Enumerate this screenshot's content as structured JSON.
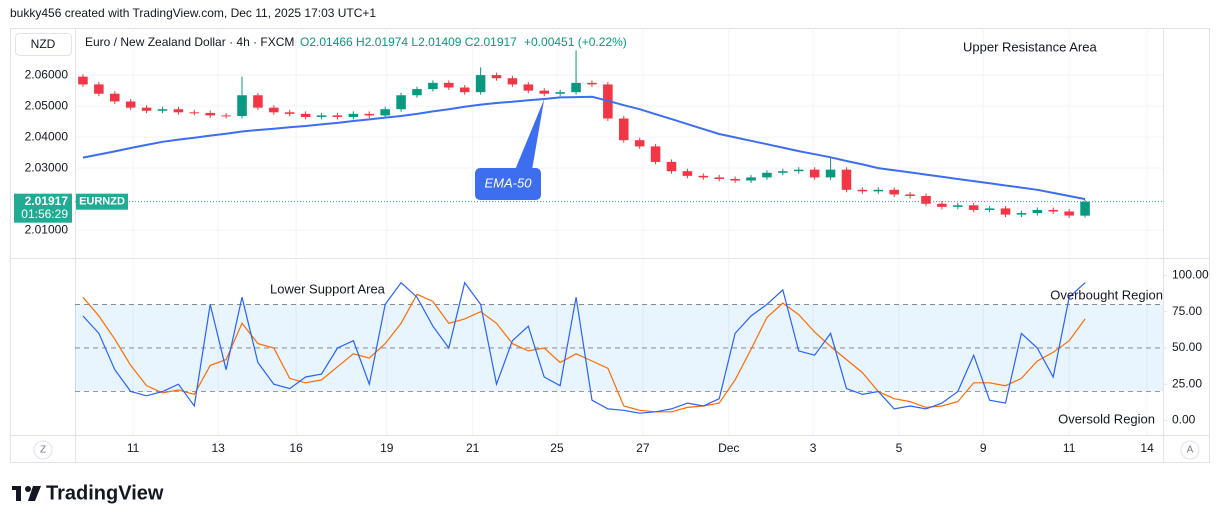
{
  "header": {
    "credit": "bukky456 created with TradingView.com, Dec 11, 2025 17:03 UTC+1",
    "symbol_button": "NZD",
    "legend_title": "Euro / New Zealand Dollar · 4h · FXCM",
    "legend_values": "O2.01466 H2.01974 L2.01409 C2.01917",
    "legend_change": "+0.00451 (+0.22%)"
  },
  "controls": {
    "left": "Z",
    "right": "A"
  },
  "footer": {
    "logo": "TradingView"
  },
  "chart_data": [
    {
      "type": "candlestick",
      "up_color": "#089981",
      "down_color": "#f23645",
      "xlim": [
        0,
        68.4
      ],
      "ylim": [
        2.001,
        2.0752
      ],
      "yticks": [
        {
          "value": 2.01,
          "label": "2.01000"
        },
        {
          "value": 2.03,
          "label": "2.03000"
        },
        {
          "value": 2.04,
          "label": "2.04000"
        },
        {
          "value": 2.05,
          "label": "2.05000"
        },
        {
          "value": 2.06,
          "label": "2.06000"
        }
      ],
      "grid": true,
      "open": [
        2.0595,
        2.057,
        2.054,
        2.0515,
        2.0495,
        2.0485,
        2.049,
        2.048,
        2.0478,
        2.047,
        2.0468,
        2.0535,
        2.0495,
        2.048,
        2.0475,
        2.0465,
        2.047,
        2.0465,
        2.0475,
        2.047,
        2.049,
        2.0535,
        2.0555,
        2.0575,
        2.056,
        2.0545,
        2.06,
        2.059,
        2.057,
        2.055,
        2.054,
        2.0545,
        2.0575,
        2.057,
        2.046,
        2.039,
        2.037,
        2.032,
        2.029,
        2.0275,
        2.027,
        2.0265,
        2.026,
        2.027,
        2.0285,
        2.029,
        2.0295,
        2.027,
        2.0295,
        2.023,
        2.0225,
        2.023,
        2.0215,
        2.021,
        2.0185,
        2.0175,
        2.018,
        2.0165,
        2.017,
        2.015,
        2.0155,
        2.0165,
        2.016,
        2.01466
      ],
      "high": [
        2.0603,
        2.0578,
        2.0548,
        2.0523,
        2.0503,
        2.0498,
        2.0498,
        2.0488,
        2.0486,
        2.0478,
        2.0595,
        2.0543,
        2.0503,
        2.0488,
        2.0483,
        2.0478,
        2.0478,
        2.0483,
        2.0483,
        2.0498,
        2.0543,
        2.0563,
        2.0583,
        2.0583,
        2.0568,
        2.0625,
        2.0608,
        2.0598,
        2.0578,
        2.0558,
        2.0553,
        2.068,
        2.0583,
        2.0578,
        2.0468,
        2.0398,
        2.0378,
        2.0328,
        2.0298,
        2.0283,
        2.0278,
        2.0273,
        2.0278,
        2.0293,
        2.0298,
        2.0303,
        2.0303,
        2.0335,
        2.0303,
        2.0238,
        2.0238,
        2.0238,
        2.0223,
        2.0218,
        2.0193,
        2.0188,
        2.0188,
        2.0178,
        2.0178,
        2.0163,
        2.0173,
        2.0173,
        2.0168,
        2.01974
      ],
      "low": [
        2.0562,
        2.0532,
        2.0507,
        2.0487,
        2.0477,
        2.0477,
        2.0472,
        2.047,
        2.0462,
        2.046,
        2.046,
        2.0487,
        2.0472,
        2.0467,
        2.0457,
        2.0457,
        2.0457,
        2.0457,
        2.0462,
        2.0462,
        2.0482,
        2.0527,
        2.0547,
        2.0552,
        2.0537,
        2.0537,
        2.0582,
        2.0562,
        2.0542,
        2.0532,
        2.0532,
        2.0537,
        2.0562,
        2.0452,
        2.0382,
        2.0362,
        2.0312,
        2.0282,
        2.0267,
        2.0262,
        2.0257,
        2.0252,
        2.0252,
        2.0262,
        2.0277,
        2.0282,
        2.0262,
        2.0262,
        2.0222,
        2.0217,
        2.0217,
        2.0207,
        2.0202,
        2.0177,
        2.0167,
        2.0167,
        2.0157,
        2.0157,
        2.0142,
        2.0142,
        2.0147,
        2.0152,
        2.0139,
        2.01409
      ],
      "close": [
        2.057,
        2.054,
        2.0515,
        2.0495,
        2.0485,
        2.049,
        2.048,
        2.0478,
        2.047,
        2.0468,
        2.0535,
        2.0495,
        2.048,
        2.0475,
        2.0465,
        2.047,
        2.0465,
        2.0475,
        2.047,
        2.049,
        2.0535,
        2.0555,
        2.0575,
        2.056,
        2.0545,
        2.06,
        2.059,
        2.057,
        2.055,
        2.054,
        2.0545,
        2.0575,
        2.057,
        2.046,
        2.039,
        2.037,
        2.032,
        2.029,
        2.0275,
        2.027,
        2.0265,
        2.026,
        2.027,
        2.0285,
        2.029,
        2.0295,
        2.027,
        2.0295,
        2.023,
        2.0225,
        2.023,
        2.0215,
        2.021,
        2.0185,
        2.0175,
        2.018,
        2.0165,
        2.017,
        2.015,
        2.0155,
        2.0165,
        2.016,
        2.0147,
        2.01917
      ],
      "series": [
        {
          "name": "EMA-50",
          "color": "#3d6ef0",
          "values": [
            2.0334,
            2.0344,
            2.0354,
            2.0365,
            2.0375,
            2.0385,
            2.0392,
            2.0398,
            2.0405,
            2.0411,
            2.0418,
            2.0423,
            2.0427,
            2.0432,
            2.0436,
            2.0441,
            2.0446,
            2.0452,
            2.0457,
            2.0463,
            2.0468,
            2.0475,
            2.0483,
            2.049,
            2.0498,
            2.0505,
            2.051,
            2.0514,
            2.0519,
            2.0523,
            2.0528,
            2.0529,
            2.053,
            2.0517,
            2.0503,
            2.049,
            2.0474,
            2.0458,
            2.0442,
            2.0426,
            2.041,
            2.0399,
            2.0388,
            2.0377,
            2.0366,
            2.0355,
            2.0345,
            2.0335,
            2.0323,
            2.0312,
            2.03,
            2.0293,
            2.0286,
            2.0279,
            2.0272,
            2.0265,
            2.0258,
            2.0251,
            2.0244,
            2.0237,
            2.023,
            2.022,
            2.021,
            2.02
          ]
        }
      ],
      "last_price": 2.01917,
      "countdown": "01:56:29",
      "symbol": "EURNZD",
      "price_color": "#22ab94",
      "annotations": [
        "Upper Resistance Area"
      ]
    },
    {
      "type": "line",
      "xlim": [
        0,
        68.4
      ],
      "xticks": [
        {
          "value": 3.65,
          "label": "11"
        },
        {
          "value": 9.0,
          "label": "13"
        },
        {
          "value": 13.9,
          "label": "16"
        },
        {
          "value": 19.6,
          "label": "19"
        },
        {
          "value": 25.0,
          "label": "21"
        },
        {
          "value": 30.3,
          "label": "25"
        },
        {
          "value": 35.7,
          "label": "27"
        },
        {
          "value": 41.1,
          "label": "Dec"
        },
        {
          "value": 46.4,
          "label": "3"
        },
        {
          "value": 51.8,
          "label": "5"
        },
        {
          "value": 57.1,
          "label": "9"
        },
        {
          "value": 62.5,
          "label": "11"
        },
        {
          "value": 67.4,
          "label": "14"
        }
      ],
      "ylim": [
        -10,
        112
      ],
      "yticks": [
        {
          "value": 0,
          "label": "0.00"
        },
        {
          "value": 25,
          "label": "25.00"
        },
        {
          "value": 50,
          "label": "50.00"
        },
        {
          "value": 75,
          "label": "75.00"
        },
        {
          "value": 100,
          "label": "100.00"
        }
      ],
      "levels": [
        20,
        50,
        80
      ],
      "band_color": "#2196f3",
      "series": [
        {
          "color": "#2962ff",
          "values": [
            72,
            60,
            35,
            20,
            17,
            20,
            25,
            10,
            80,
            35,
            85,
            40,
            25,
            22,
            30,
            32,
            50,
            55,
            25,
            80,
            95,
            85,
            65,
            50,
            95,
            80,
            25,
            55,
            65,
            30,
            24,
            85,
            14,
            8,
            7,
            5,
            6,
            8,
            12,
            10,
            15,
            60,
            72,
            80,
            90,
            48,
            45,
            60,
            22,
            18,
            20,
            8,
            10,
            8,
            12,
            20,
            45,
            14,
            12,
            60,
            50,
            30,
            85,
            95
          ]
        },
        {
          "color": "#ff6d00",
          "values": [
            85,
            72,
            56,
            38,
            24,
            19,
            21,
            18,
            38,
            42,
            67,
            53,
            50,
            29,
            26,
            28,
            37,
            46,
            43,
            53,
            67,
            87,
            82,
            67,
            70,
            75,
            67,
            53,
            48,
            50,
            40,
            46,
            41,
            36,
            10,
            7,
            6,
            6,
            9,
            10,
            12,
            28,
            49,
            71,
            81,
            73,
            61,
            51,
            42,
            33,
            20,
            15,
            13,
            9,
            10,
            13,
            26,
            26,
            24,
            29,
            41,
            47,
            55,
            70
          ]
        }
      ],
      "annotations": [
        "Lower Support Area",
        "Overbought Region",
        "Oversold Region"
      ]
    }
  ]
}
